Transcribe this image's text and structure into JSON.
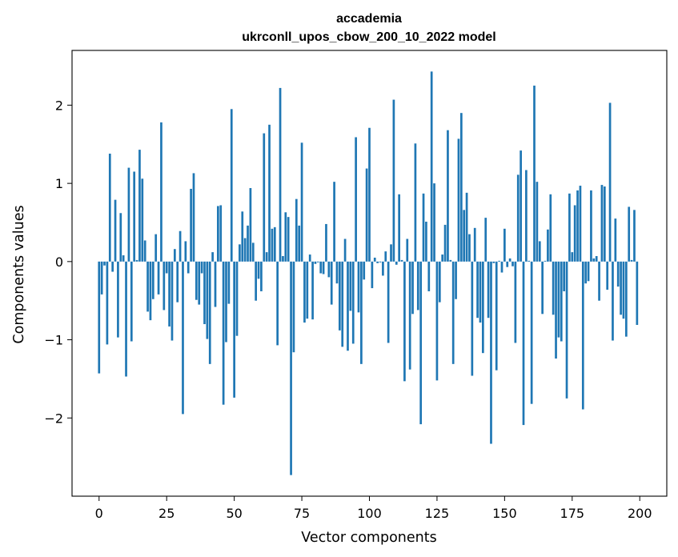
{
  "chart_data": {
    "type": "bar",
    "title": "accademia",
    "subtitle": "ukrconll_upos_cbow_200_10_2022 model",
    "xlabel": "Vector components",
    "ylabel": "Components values",
    "xlim": [
      -10,
      210
    ],
    "ylim": [
      -3.0,
      2.7
    ],
    "xticks": [
      0,
      25,
      50,
      75,
      100,
      125,
      150,
      175,
      200
    ],
    "yticks": [
      -2,
      -1,
      0,
      1,
      2
    ],
    "xtick_labels": [
      "0",
      "25",
      "50",
      "75",
      "100",
      "125",
      "150",
      "175",
      "200"
    ],
    "ytick_labels": [
      "−2",
      "−1",
      "0",
      "1",
      "2"
    ],
    "grid": false,
    "legend": "none",
    "bar_color": "#1f77b4",
    "x": [
      0,
      1,
      2,
      3,
      4,
      5,
      6,
      7,
      8,
      9,
      10,
      11,
      12,
      13,
      14,
      15,
      16,
      17,
      18,
      19,
      20,
      21,
      22,
      23,
      24,
      25,
      26,
      27,
      28,
      29,
      30,
      31,
      32,
      33,
      34,
      35,
      36,
      37,
      38,
      39,
      40,
      41,
      42,
      43,
      44,
      45,
      46,
      47,
      48,
      49,
      50,
      51,
      52,
      53,
      54,
      55,
      56,
      57,
      58,
      59,
      60,
      61,
      62,
      63,
      64,
      65,
      66,
      67,
      68,
      69,
      70,
      71,
      72,
      73,
      74,
      75,
      76,
      77,
      78,
      79,
      80,
      81,
      82,
      83,
      84,
      85,
      86,
      87,
      88,
      89,
      90,
      91,
      92,
      93,
      94,
      95,
      96,
      97,
      98,
      99,
      100,
      101,
      102,
      103,
      104,
      105,
      106,
      107,
      108,
      109,
      110,
      111,
      112,
      113,
      114,
      115,
      116,
      117,
      118,
      119,
      120,
      121,
      122,
      123,
      124,
      125,
      126,
      127,
      128,
      129,
      130,
      131,
      132,
      133,
      134,
      135,
      136,
      137,
      138,
      139,
      140,
      141,
      142,
      143,
      144,
      145,
      146,
      147,
      148,
      149,
      150,
      151,
      152,
      153,
      154,
      155,
      156,
      157,
      158,
      159,
      160,
      161,
      162,
      163,
      164,
      165,
      166,
      167,
      168,
      169,
      170,
      171,
      172,
      173,
      174,
      175,
      176,
      177,
      178,
      179,
      180,
      181,
      182,
      183,
      184,
      185,
      186,
      187,
      188,
      189,
      190,
      191,
      192,
      193,
      194,
      195,
      196,
      197,
      198,
      199
    ],
    "values": [
      -1.43,
      -0.42,
      -0.05,
      -1.06,
      1.38,
      -0.13,
      0.79,
      -0.97,
      0.62,
      0.08,
      -1.47,
      1.2,
      -1.02,
      1.15,
      0.02,
      1.43,
      1.06,
      0.27,
      -0.64,
      -0.75,
      -0.48,
      0.35,
      -0.42,
      1.78,
      -0.62,
      -0.15,
      -0.83,
      -1.01,
      0.16,
      -0.52,
      0.39,
      -1.95,
      0.26,
      -0.15,
      0.93,
      1.13,
      -0.49,
      -0.55,
      -0.15,
      -0.8,
      -0.99,
      -1.31,
      0.12,
      -0.58,
      0.71,
      0.72,
      -1.83,
      -1.03,
      -0.54,
      1.95,
      -1.74,
      -0.95,
      0.22,
      0.64,
      0.3,
      0.46,
      0.94,
      0.24,
      -0.5,
      -0.22,
      -0.38,
      1.64,
      0.12,
      1.75,
      0.42,
      0.44,
      -1.07,
      2.22,
      0.07,
      0.63,
      0.57,
      -2.73,
      -1.16,
      0.8,
      0.46,
      1.52,
      -0.78,
      -0.73,
      0.09,
      -0.74,
      -0.03,
      -0.01,
      -0.15,
      -0.16,
      0.48,
      -0.2,
      -0.55,
      1.02,
      -0.28,
      -0.88,
      -1.09,
      0.29,
      -1.14,
      -0.63,
      -1.05,
      1.59,
      -0.65,
      -1.31,
      -0.23,
      1.19,
      1.71,
      -0.34,
      0.05,
      -0.02,
      -0.01,
      -0.18,
      0.13,
      -1.04,
      0.22,
      2.07,
      -0.04,
      0.86,
      0.02,
      -1.53,
      0.29,
      -1.38,
      -0.67,
      1.51,
      -0.62,
      -2.08,
      0.87,
      0.51,
      -0.38,
      2.43,
      1.0,
      -1.52,
      -0.52,
      0.09,
      0.47,
      1.68,
      0.02,
      -1.31,
      -0.48,
      1.57,
      1.9,
      0.66,
      0.88,
      0.35,
      -1.46,
      0.43,
      -0.72,
      -0.78,
      -1.17,
      0.56,
      -0.72,
      -2.33,
      -0.02,
      -1.39,
      0.01,
      -0.14,
      0.42,
      -0.07,
      0.04,
      -0.06,
      -1.04,
      1.11,
      1.42,
      -2.09,
      1.17,
      0.01,
      -1.82,
      2.25,
      1.02,
      0.26,
      -0.67,
      0.01,
      0.41,
      0.86,
      -0.68,
      -1.24,
      -0.97,
      -1.02,
      -0.38,
      -1.75,
      0.87,
      0.12,
      0.72,
      0.91,
      0.97,
      -1.89,
      -0.28,
      -0.25,
      0.91,
      0.04,
      0.07,
      -0.5,
      0.98,
      0.96,
      -0.36,
      2.03,
      -1.01,
      0.55,
      -0.32,
      -0.68,
      -0.73,
      -0.96,
      0.7,
      0.02,
      0.66,
      -0.81
    ]
  }
}
